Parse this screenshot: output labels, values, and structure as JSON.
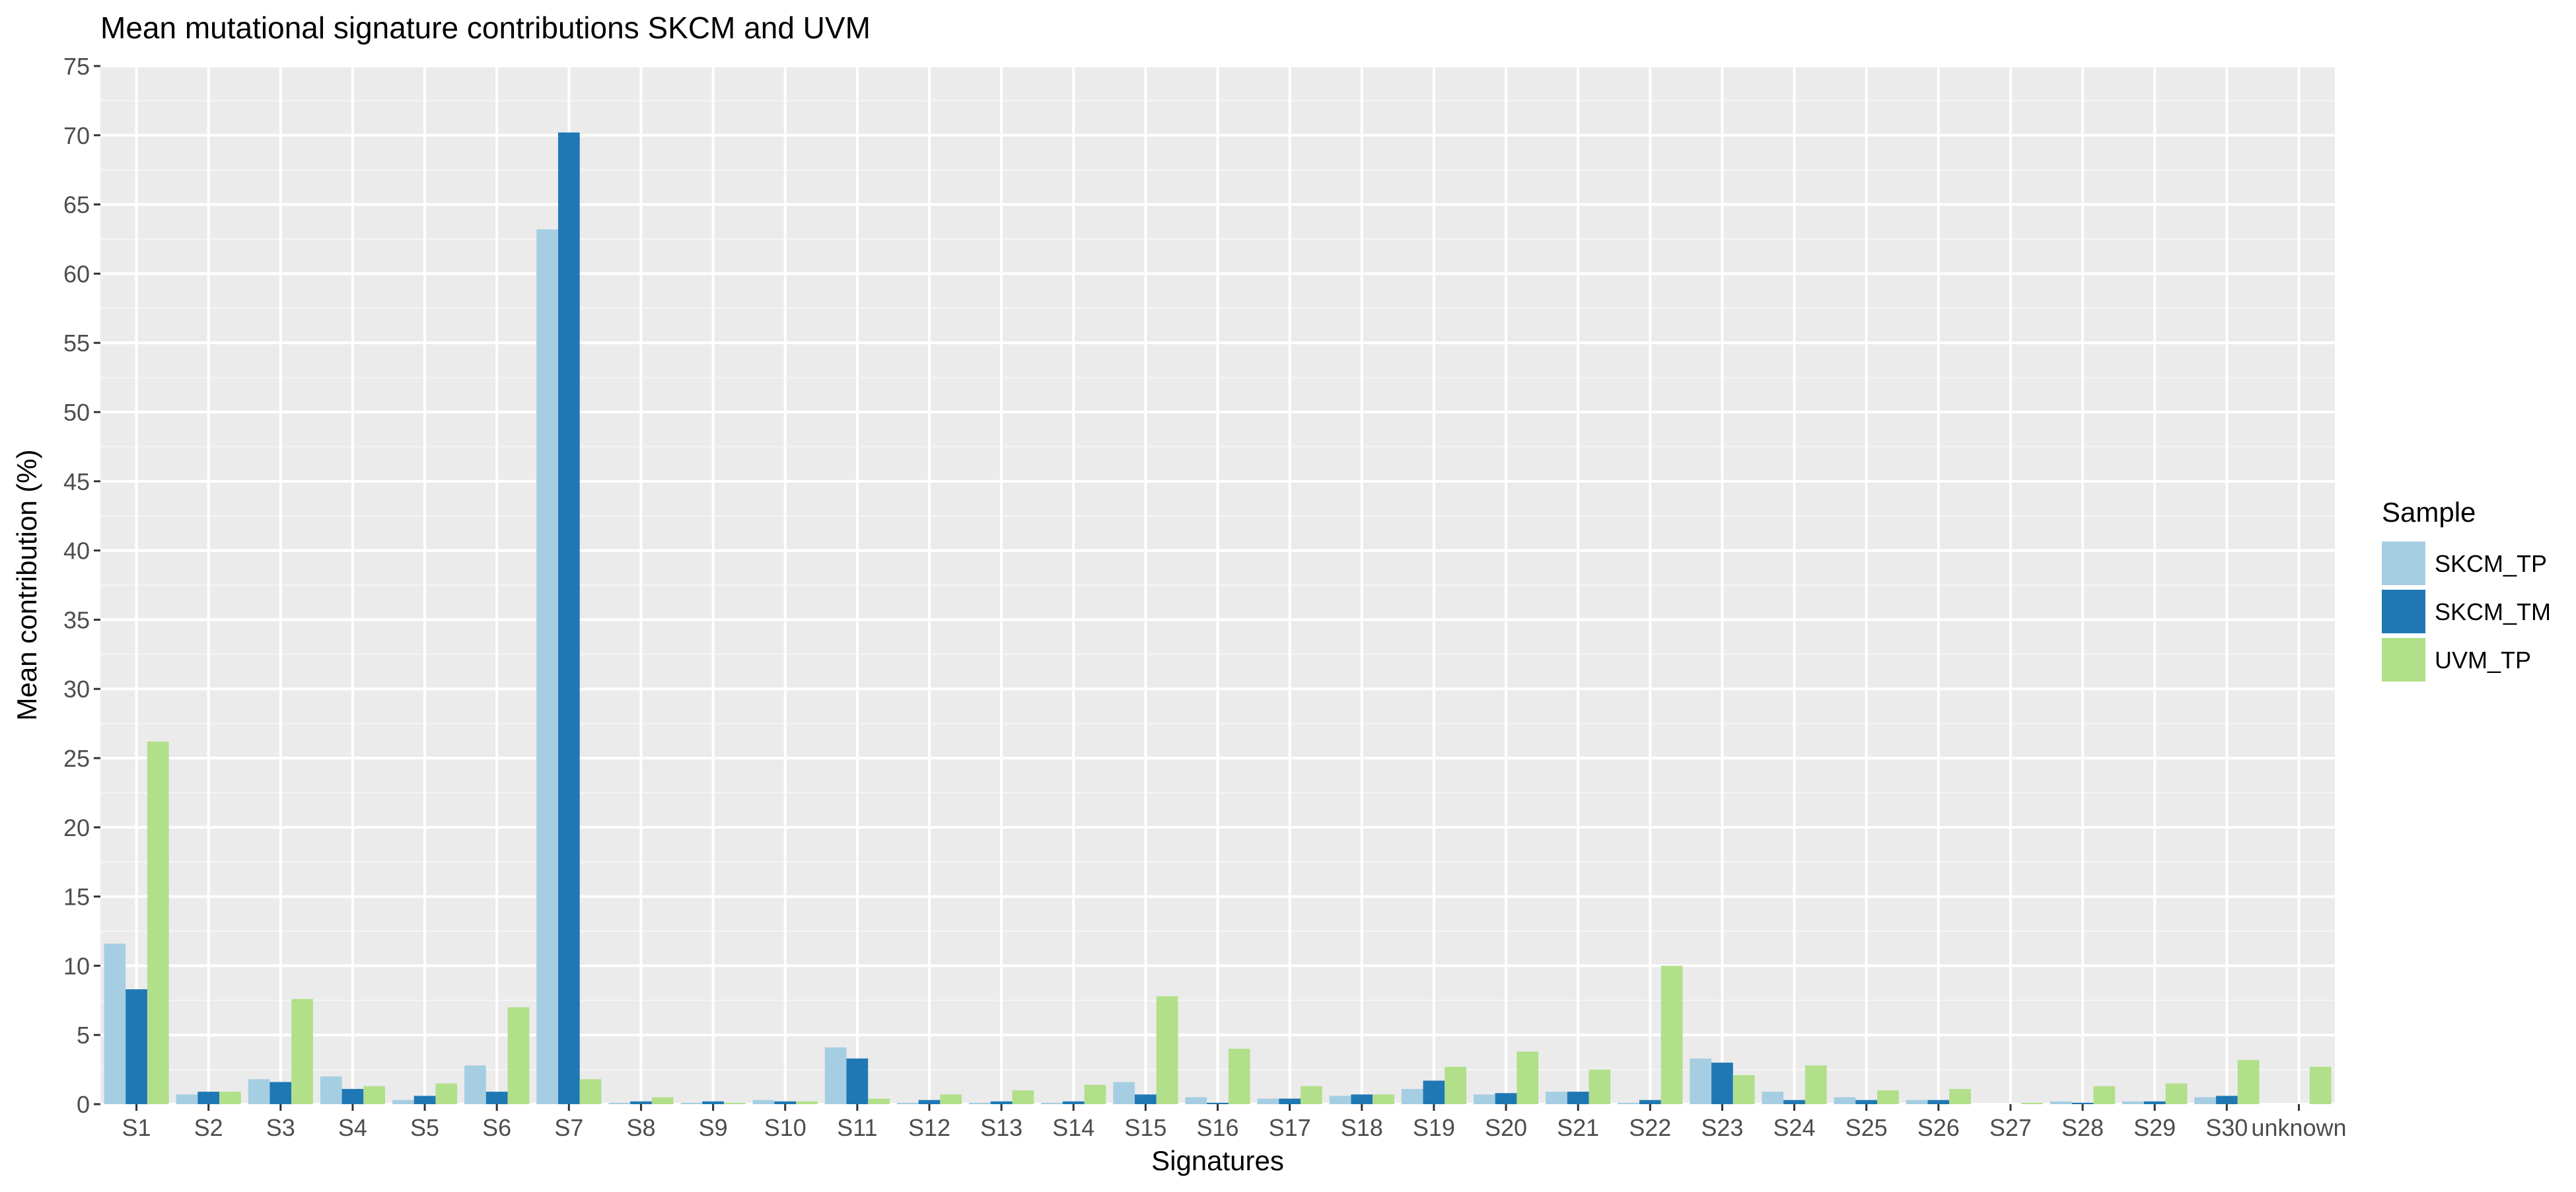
{
  "chart_data": {
    "type": "bar",
    "title": "Mean mutational signature contributions SKCM and UVM",
    "xlabel": "Signatures",
    "ylabel": "Mean contribution (%)",
    "ylim": [
      0,
      75
    ],
    "yticks": [
      0,
      5,
      10,
      15,
      20,
      25,
      30,
      35,
      40,
      45,
      50,
      55,
      60,
      65,
      70,
      75
    ],
    "grid": true,
    "legend": {
      "title": "Sample",
      "position": "right"
    },
    "categories": [
      "S1",
      "S2",
      "S3",
      "S4",
      "S5",
      "S6",
      "S7",
      "S8",
      "S9",
      "S10",
      "S11",
      "S12",
      "S13",
      "S14",
      "S15",
      "S16",
      "S17",
      "S18",
      "S19",
      "S20",
      "S21",
      "S22",
      "S23",
      "S24",
      "S25",
      "S26",
      "S27",
      "S28",
      "S29",
      "S30",
      "unknown"
    ],
    "series": [
      {
        "name": "SKCM_TP",
        "color": "#a6cee3",
        "values": [
          11.6,
          0.7,
          1.8,
          2.0,
          0.3,
          2.8,
          63.2,
          0.1,
          0.1,
          0.3,
          4.1,
          0.1,
          0.1,
          0.1,
          1.6,
          0.5,
          0.4,
          0.6,
          1.1,
          0.7,
          0.9,
          0.1,
          3.3,
          0.9,
          0.5,
          0.3,
          0.0,
          0.2,
          0.2,
          0.5,
          0.0
        ]
      },
      {
        "name": "SKCM_TM",
        "color": "#1f78b4",
        "values": [
          8.3,
          0.9,
          1.6,
          1.1,
          0.6,
          0.9,
          70.2,
          0.2,
          0.2,
          0.2,
          3.3,
          0.3,
          0.2,
          0.2,
          0.7,
          0.1,
          0.4,
          0.7,
          1.7,
          0.8,
          0.9,
          0.3,
          3.0,
          0.3,
          0.3,
          0.3,
          0.0,
          0.1,
          0.2,
          0.6,
          0.0
        ]
      },
      {
        "name": "UVM_TP",
        "color": "#b2df8a",
        "values": [
          26.2,
          0.9,
          7.6,
          1.3,
          1.5,
          7.0,
          1.8,
          0.5,
          0.1,
          0.2,
          0.4,
          0.7,
          1.0,
          1.4,
          7.8,
          4.0,
          1.3,
          0.7,
          2.7,
          3.8,
          2.5,
          10.0,
          2.1,
          2.8,
          1.0,
          1.1,
          0.1,
          1.3,
          1.5,
          3.2,
          2.7
        ]
      }
    ]
  }
}
